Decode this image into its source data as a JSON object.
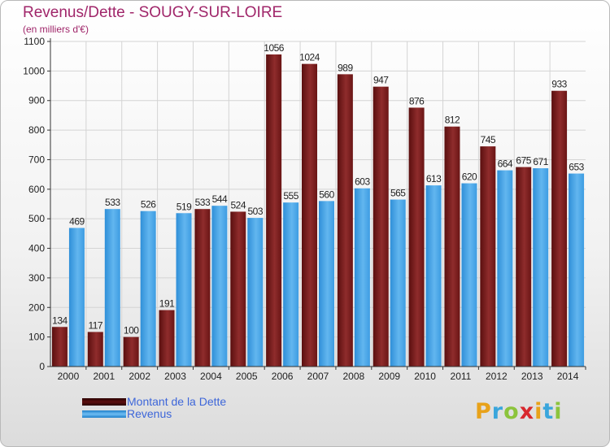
{
  "title": "Revenus/Dette - SOUGY-SUR-LOIRE",
  "subtitle": "(en milliers d'€)",
  "colors": {
    "dette": "#7a1e1e",
    "revenus": "#4ea6e6",
    "title": "#a0266a",
    "legend_text": "#3d66d9"
  },
  "legend": [
    {
      "label": "Montant de la Dette",
      "color": "#5c0e0e"
    },
    {
      "label": "Revenus",
      "color": "#4ea6e6"
    }
  ],
  "logo": {
    "text": "Proxiti"
  },
  "chart_data": {
    "type": "bar",
    "categories": [
      "2000",
      "2001",
      "2002",
      "2003",
      "2004",
      "2005",
      "2006",
      "2007",
      "2008",
      "2009",
      "2010",
      "2011",
      "2012",
      "2013",
      "2014"
    ],
    "series": [
      {
        "name": "Montant de la Dette",
        "values": [
          134,
          117,
          100,
          191,
          533,
          524,
          1056,
          1024,
          989,
          947,
          876,
          812,
          745,
          675,
          933
        ]
      },
      {
        "name": "Revenus",
        "values": [
          469,
          533,
          526,
          519,
          544,
          503,
          555,
          560,
          603,
          565,
          613,
          620,
          664,
          671,
          653
        ]
      }
    ],
    "ylim": [
      0,
      1100
    ],
    "yticks": [
      0,
      100,
      200,
      300,
      400,
      500,
      600,
      700,
      800,
      900,
      1000,
      1100
    ],
    "grid": true,
    "legend_position": "bottom-left"
  }
}
